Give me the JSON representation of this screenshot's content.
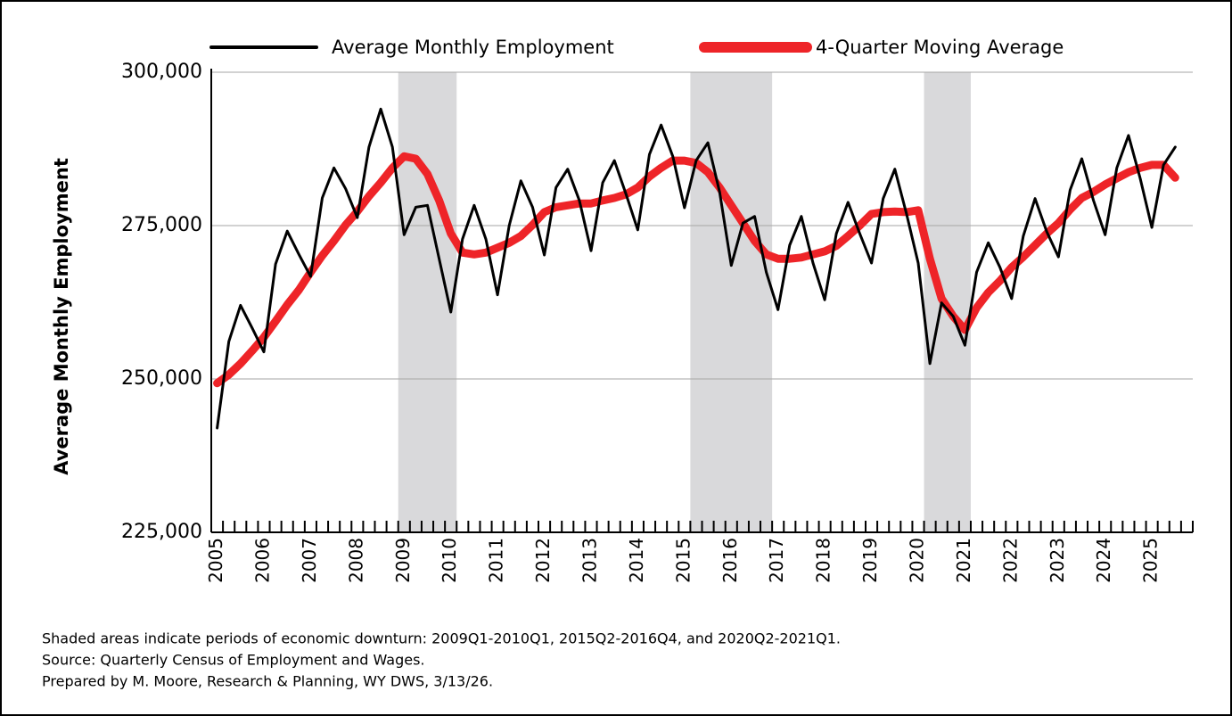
{
  "chart_data": {
    "type": "line",
    "y_axis_label": "Average Monthly Employment",
    "categories": [
      "2005",
      null,
      null,
      null,
      "2006",
      null,
      null,
      null,
      "2007",
      null,
      null,
      null,
      "2008",
      null,
      null,
      null,
      "2009",
      null,
      null,
      null,
      "2010",
      null,
      null,
      null,
      "2011",
      null,
      null,
      null,
      "2012",
      null,
      null,
      null,
      "2013",
      null,
      null,
      null,
      "2014",
      null,
      null,
      null,
      "2015",
      null,
      null,
      null,
      "2016",
      null,
      null,
      null,
      "2017",
      null,
      null,
      null,
      "2018",
      null,
      null,
      null,
      "2019",
      null,
      null,
      null,
      "2020",
      null,
      null,
      null,
      "2021",
      null,
      null,
      null,
      "2022",
      null,
      null,
      null,
      "2023",
      null,
      null,
      null,
      "2024",
      null,
      null,
      null,
      "2025",
      null,
      null,
      null
    ],
    "series": [
      {
        "name": "Average Monthly Employment",
        "color": "#000000",
        "values": [
          242000,
          256100,
          262000,
          258300,
          254400,
          268700,
          274100,
          270300,
          266700,
          279500,
          284400,
          281000,
          276300,
          287800,
          294000,
          287800,
          273500,
          278000,
          278300,
          269600,
          260900,
          272800,
          278300,
          272800,
          263700,
          275000,
          282300,
          278000,
          270200,
          281200,
          284200,
          279100,
          270900,
          282000,
          285600,
          280100,
          274300,
          286600,
          291400,
          286300,
          277900,
          285600,
          288500,
          280500,
          268500,
          275400,
          276500,
          267400,
          261300,
          271800,
          276500,
          268900,
          262900,
          273700,
          278800,
          273700,
          268900,
          279400,
          284200,
          276900,
          268900,
          252500,
          262400,
          260200,
          255500,
          267400,
          272200,
          268200,
          263100,
          273300,
          279400,
          274000,
          269900,
          280800,
          285900,
          279100,
          273500,
          284400,
          289700,
          282700,
          274700,
          284900,
          287800,
          null
        ]
      },
      {
        "name": "4-Quarter Moving Average",
        "color": "#ee2428",
        "values": [
          249300,
          250700,
          252500,
          254600,
          256800,
          259400,
          262100,
          264500,
          267400,
          270100,
          272500,
          275100,
          277300,
          279800,
          282000,
          284400,
          286300,
          285900,
          283400,
          279100,
          273700,
          270600,
          270300,
          270600,
          271400,
          272200,
          273300,
          275100,
          277200,
          278000,
          278300,
          278600,
          278600,
          279100,
          279500,
          280100,
          281200,
          283000,
          284400,
          285600,
          285600,
          285200,
          283700,
          281200,
          278300,
          275400,
          272500,
          270300,
          269600,
          269600,
          269800,
          270300,
          270800,
          271700,
          273300,
          275000,
          276900,
          277200,
          277300,
          277200,
          277500,
          269600,
          263100,
          260200,
          258000,
          261600,
          264100,
          266000,
          268200,
          269900,
          271800,
          273700,
          275400,
          277600,
          279500,
          280500,
          281700,
          282700,
          283700,
          284400,
          284900,
          284900,
          282800,
          null
        ]
      }
    ],
    "shaded": [
      [
        16,
        20
      ],
      [
        41,
        47
      ],
      [
        61,
        64
      ]
    ],
    "ylim": [
      225000,
      300000
    ],
    "yticks": [
      {
        "value": 225000,
        "label": "225,000"
      },
      {
        "value": 250000,
        "label": "250,000"
      },
      {
        "value": 275000,
        "label": "275,000"
      },
      {
        "value": 300000,
        "label": "300,000"
      }
    ],
    "grid": true,
    "notes": [
      "Shaded areas indicate periods of economic downturn: 2009Q1-2010Q1, 2015Q2-2016Q4, and 2020Q2-2021Q1.",
      "Source: Quarterly Census of Employment and Wages.",
      "Prepared by M. Moore, Research & Planning, WY DWS, 3/13/26."
    ]
  }
}
